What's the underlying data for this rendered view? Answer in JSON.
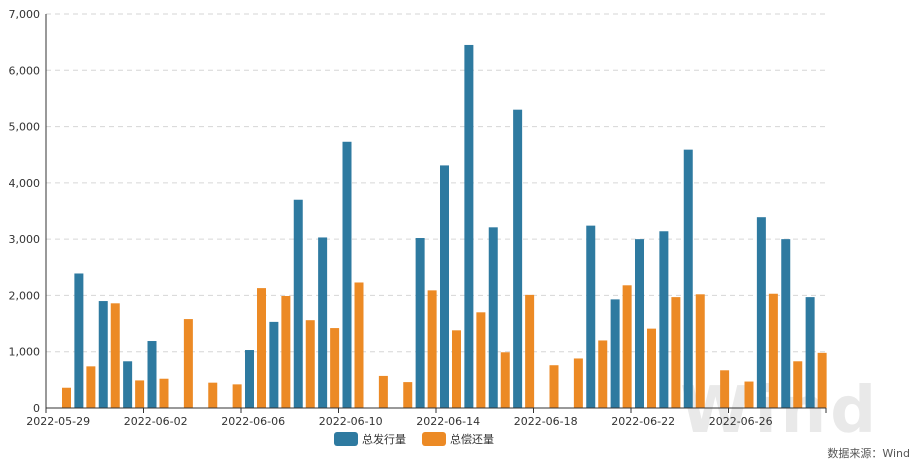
{
  "chart_data": {
    "type": "bar",
    "categories": [
      "2022-05-29",
      "2022-05-30",
      "2022-05-31",
      "2022-06-01",
      "2022-06-02",
      "2022-06-03",
      "2022-06-04",
      "2022-06-05",
      "2022-06-06",
      "2022-06-07",
      "2022-06-08",
      "2022-06-09",
      "2022-06-10",
      "2022-06-11",
      "2022-06-12",
      "2022-06-13",
      "2022-06-14",
      "2022-06-15",
      "2022-06-16",
      "2022-06-17",
      "2022-06-18",
      "2022-06-19",
      "2022-06-20",
      "2022-06-21",
      "2022-06-22",
      "2022-06-23",
      "2022-06-24",
      "2022-06-25",
      "2022-06-26",
      "2022-06-27",
      "2022-06-28",
      "2022-06-29"
    ],
    "x_tick_labels": [
      "2022-05-29",
      "2022-06-02",
      "2022-06-06",
      "2022-06-10",
      "2022-06-14",
      "2022-06-18",
      "2022-06-22",
      "2022-06-26"
    ],
    "series": [
      {
        "name": "总发行量",
        "color": "#2e7aa0",
        "values": [
          0,
          2390,
          1900,
          830,
          1190,
          0,
          0,
          0,
          1030,
          1530,
          3700,
          3030,
          4730,
          0,
          0,
          3020,
          4310,
          6450,
          3210,
          5300,
          0,
          0,
          3240,
          1930,
          3000,
          3140,
          4590,
          0,
          0,
          3390,
          3000,
          1970
        ]
      },
      {
        "name": "总偿还量",
        "color": "#ec8a25",
        "values": [
          360,
          740,
          1860,
          490,
          520,
          1580,
          450,
          420,
          2130,
          1990,
          1560,
          1420,
          2230,
          570,
          460,
          2090,
          1380,
          1700,
          990,
          2010,
          760,
          880,
          1200,
          2180,
          1410,
          1970,
          2020,
          670,
          470,
          2030,
          830,
          980
        ]
      }
    ],
    "y_ticks": [
      "0",
      "1,000",
      "2,000",
      "3,000",
      "4,000",
      "5,000",
      "6,000",
      "7,000"
    ],
    "ylim": [
      0,
      7000
    ],
    "grid": true,
    "legend_position": "bottom-center",
    "source": "数据来源：Wind",
    "watermark": "Wind"
  }
}
